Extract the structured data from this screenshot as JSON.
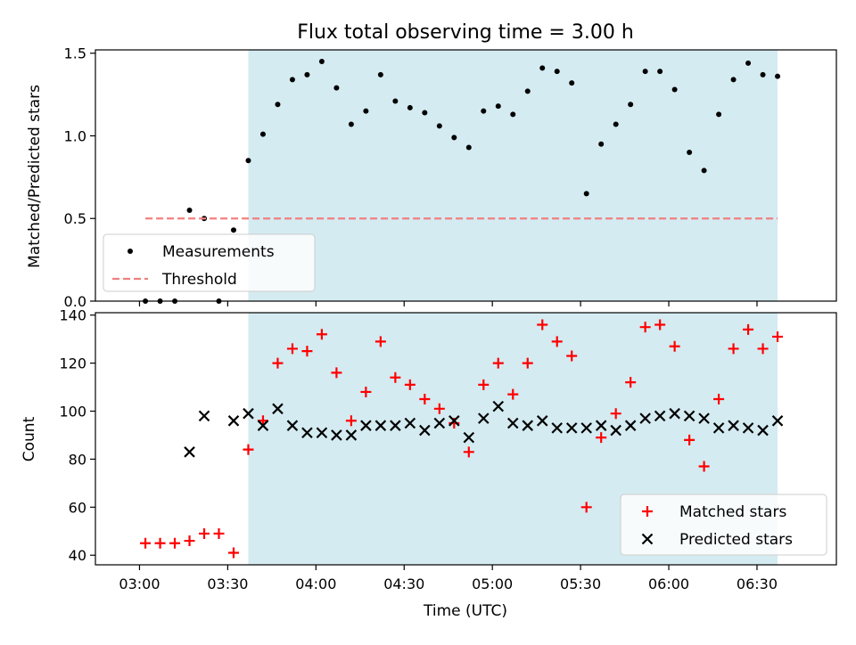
{
  "chart_data": [
    {
      "type": "scatter",
      "title": "Flux total observing time = 3.00 h",
      "xlabel": "",
      "ylabel": "Matched/Predicted stars",
      "ylim": [
        0,
        1.52
      ],
      "yticks": [
        0.0,
        0.5,
        1.0,
        1.5
      ],
      "ytick_labels": [
        "0.0",
        "0.5",
        "1.0",
        "1.5"
      ],
      "x_is_time": true,
      "xlim_minutes_utc": [
        165,
        417
      ],
      "observing_window_minutes_utc": [
        217,
        397
      ],
      "observing_window_color": "#d4ebf1",
      "legend_location": "lower-left",
      "series": [
        {
          "name": "Measurements",
          "marker": "dot",
          "color": "#000000",
          "x_minutes_utc": [
            182,
            187,
            192,
            197,
            202,
            207,
            212,
            217,
            222,
            227,
            232,
            237,
            242,
            247,
            252,
            257,
            262,
            267,
            272,
            277,
            282,
            287,
            292,
            297,
            302,
            307,
            312,
            317,
            322,
            327,
            332,
            337,
            342,
            347,
            352,
            357,
            362,
            367,
            372,
            377,
            382,
            387,
            392,
            397
          ],
          "values": [
            0.0,
            0.0,
            0.0,
            0.55,
            0.5,
            0.0,
            0.43,
            0.85,
            1.01,
            1.19,
            1.34,
            1.37,
            1.45,
            1.29,
            1.07,
            1.15,
            1.37,
            1.21,
            1.17,
            1.14,
            1.06,
            0.99,
            0.93,
            1.15,
            1.18,
            1.13,
            1.27,
            1.41,
            1.39,
            1.32,
            0.65,
            0.95,
            1.07,
            1.19,
            1.39,
            1.39,
            1.28,
            0.9,
            0.79,
            1.13,
            1.34,
            1.44,
            1.37,
            1.36
          ]
        },
        {
          "name": "Threshold",
          "marker": "dashed-line",
          "color": "#f08080",
          "value": 0.5,
          "x_range_minutes_utc": [
            182,
            397
          ]
        }
      ]
    },
    {
      "type": "scatter",
      "title": "",
      "xlabel": "Time (UTC)",
      "ylabel": "Count",
      "ylim": [
        36,
        141
      ],
      "yticks": [
        40,
        60,
        80,
        100,
        120,
        140
      ],
      "ytick_labels": [
        "40",
        "60",
        "80",
        "100",
        "120",
        "140"
      ],
      "x_is_time": true,
      "xlim_minutes_utc": [
        165,
        417
      ],
      "xticks_minutes_utc": [
        180,
        210,
        240,
        270,
        300,
        330,
        360,
        390
      ],
      "xtick_labels": [
        "03:00",
        "03:30",
        "04:00",
        "04:30",
        "05:00",
        "05:30",
        "06:00",
        "06:30"
      ],
      "observing_window_minutes_utc": [
        217,
        397
      ],
      "observing_window_color": "#d4ebf1",
      "legend_location": "lower-right",
      "series": [
        {
          "name": "Matched stars",
          "marker": "plus",
          "color": "#ff0000",
          "x_minutes_utc": [
            182,
            187,
            192,
            197,
            202,
            207,
            212,
            217,
            222,
            227,
            232,
            237,
            242,
            247,
            252,
            257,
            262,
            267,
            272,
            277,
            282,
            287,
            292,
            297,
            302,
            307,
            312,
            317,
            322,
            327,
            332,
            337,
            342,
            347,
            352,
            357,
            362,
            367,
            372,
            377,
            382,
            387,
            392,
            397
          ],
          "values": [
            45,
            45,
            45,
            46,
            49,
            49,
            41,
            84,
            96,
            120,
            126,
            125,
            132,
            116,
            96,
            108,
            129,
            114,
            111,
            105,
            101,
            95,
            83,
            111,
            120,
            107,
            120,
            136,
            129,
            123,
            60,
            89,
            99,
            112,
            135,
            136,
            127,
            88,
            77,
            105,
            126,
            134,
            126,
            131
          ]
        },
        {
          "name": "Predicted stars",
          "marker": "x",
          "color": "#000000",
          "x_minutes_utc": [
            197,
            202,
            212,
            217,
            222,
            227,
            232,
            237,
            242,
            247,
            252,
            257,
            262,
            267,
            272,
            277,
            282,
            287,
            292,
            297,
            302,
            307,
            312,
            317,
            322,
            327,
            332,
            337,
            342,
            347,
            352,
            357,
            362,
            367,
            372,
            377,
            382,
            387,
            392,
            397
          ],
          "values": [
            83,
            98,
            96,
            99,
            94,
            101,
            94,
            91,
            91,
            90,
            90,
            94,
            94,
            94,
            95,
            92,
            95,
            96,
            89,
            97,
            102,
            95,
            94,
            96,
            93,
            93,
            93,
            94,
            92,
            94,
            97,
            98,
            99,
            98,
            97,
            93,
            94,
            93,
            92,
            96
          ]
        }
      ]
    }
  ]
}
